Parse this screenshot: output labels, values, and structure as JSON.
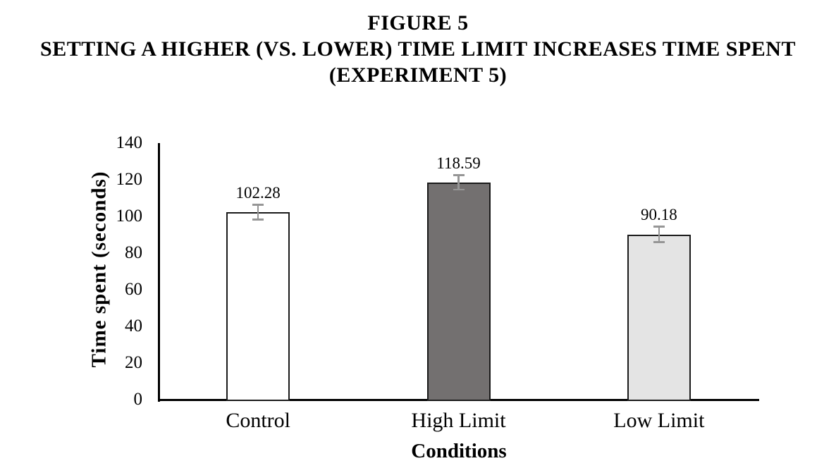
{
  "title": {
    "line1": "FIGURE 5",
    "line2": "SETTING A HIGHER (VS. LOWER) TIME LIMIT INCREASES TIME SPENT",
    "line3": "(EXPERIMENT 5)"
  },
  "chart_data": {
    "type": "bar",
    "title": "FIGURE 5 SETTING A HIGHER (VS. LOWER) TIME LIMIT INCREASES TIME SPENT (EXPERIMENT 5)",
    "categories": [
      "Control",
      "High Limit",
      "Low Limit"
    ],
    "values": [
      102.28,
      118.59,
      90.18
    ],
    "data_labels": [
      "102.28",
      "118.59",
      "90.18"
    ],
    "error_bars": [
      4.1,
      4.0,
      4.4
    ],
    "xlabel": "Conditions",
    "ylabel": "Time spent (seconds)",
    "ylim": [
      0,
      140
    ],
    "yticks": [
      0,
      20,
      40,
      60,
      80,
      100,
      120,
      140
    ],
    "grid": false,
    "legend": "none",
    "bar_fill_colors": [
      "#ffffff",
      "#737070",
      "#e4e4e4"
    ],
    "bar_border_color": "#1a1a1a",
    "error_bar_color": "#969696",
    "axis_color": "#000000"
  }
}
